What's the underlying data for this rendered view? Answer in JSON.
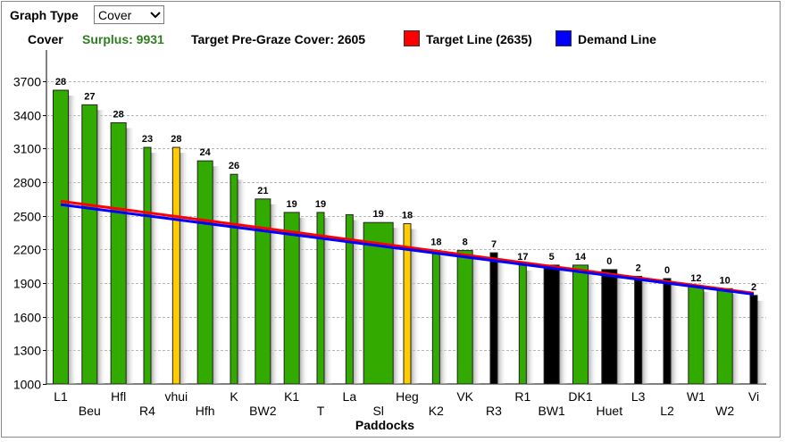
{
  "controls": {
    "graph_type_label": "Graph Type",
    "graph_type_value": "Cover"
  },
  "info": {
    "cover_label": "Cover",
    "surplus": "Surplus: 9931",
    "target_pregraze": "Target Pre-Graze Cover: 2605"
  },
  "legend": {
    "target_line": "Target Line (2635)",
    "demand_line": "Demand Line"
  },
  "colors": {
    "green": "#33aa00",
    "yellow": "#ffcc00",
    "black": "#000000",
    "target_line": "#ff0000",
    "demand_line": "#0000ff",
    "surplus_text": "#2e7d1e"
  },
  "chart_data": {
    "type": "bar",
    "title": "",
    "xlabel": "Paddocks",
    "ylabel": "",
    "ylim": [
      1000,
      3800
    ],
    "yticks": [
      1000,
      1300,
      1600,
      1900,
      2200,
      2500,
      2800,
      3100,
      3400,
      3700
    ],
    "grid": true,
    "bars": [
      {
        "label": "L1",
        "value": 3620,
        "count": "28",
        "color": "green",
        "width": "normal"
      },
      {
        "label": "Beu",
        "value": 3490,
        "count": "27",
        "color": "green",
        "width": "normal"
      },
      {
        "label": "Hfl",
        "value": 3330,
        "count": "28",
        "color": "green",
        "width": "normal"
      },
      {
        "label": "R4",
        "value": 3110,
        "count": "23",
        "color": "green",
        "width": "narrow"
      },
      {
        "label": "vhui",
        "value": 3110,
        "count": "28",
        "color": "yellow",
        "width": "narrow"
      },
      {
        "label": "Hfh",
        "value": 2990,
        "count": "24",
        "color": "green",
        "width": "normal"
      },
      {
        "label": "K",
        "value": 2870,
        "count": "26",
        "color": "green",
        "width": "narrow"
      },
      {
        "label": "BW2",
        "value": 2650,
        "count": "21",
        "color": "green",
        "width": "normal"
      },
      {
        "label": "K1",
        "value": 2530,
        "count": "19",
        "color": "green",
        "width": "normal"
      },
      {
        "label": "T",
        "value": 2530,
        "count": "19",
        "color": "green",
        "width": "narrow"
      },
      {
        "label": "La",
        "value": 2510,
        "count": "",
        "color": "green",
        "width": "narrow"
      },
      {
        "label": "Sl",
        "value": 2440,
        "count": "19",
        "color": "green",
        "width": "wide"
      },
      {
        "label": "Heg",
        "value": 2430,
        "count": "18",
        "color": "yellow",
        "width": "narrow"
      },
      {
        "label": "K2",
        "value": 2190,
        "count": "18",
        "color": "green",
        "width": "narrow"
      },
      {
        "label": "VK",
        "value": 2190,
        "count": "8",
        "color": "green",
        "width": "normal"
      },
      {
        "label": "R3",
        "value": 2170,
        "count": "7",
        "color": "black",
        "width": "narrow"
      },
      {
        "label": "R1",
        "value": 2060,
        "count": "17",
        "color": "green",
        "width": "narrow"
      },
      {
        "label": "BW1",
        "value": 2060,
        "count": "5",
        "color": "black",
        "width": "normal"
      },
      {
        "label": "DK1",
        "value": 2060,
        "count": "14",
        "color": "green",
        "width": "normal"
      },
      {
        "label": "Huet",
        "value": 2020,
        "count": "0",
        "color": "black",
        "width": "normal"
      },
      {
        "label": "L3",
        "value": 1960,
        "count": "2",
        "color": "black",
        "width": "narrow"
      },
      {
        "label": "L2",
        "value": 1940,
        "count": "0",
        "color": "black",
        "width": "narrow"
      },
      {
        "label": "W1",
        "value": 1870,
        "count": "12",
        "color": "green",
        "width": "normal"
      },
      {
        "label": "W2",
        "value": 1850,
        "count": "10",
        "color": "green",
        "width": "normal"
      },
      {
        "label": "Vi",
        "value": 1790,
        "count": "2",
        "color": "black",
        "width": "narrow"
      }
    ],
    "target_line": {
      "start": 2630,
      "end": 1810
    },
    "demand_line": {
      "start": 2600,
      "end": 1800
    }
  }
}
